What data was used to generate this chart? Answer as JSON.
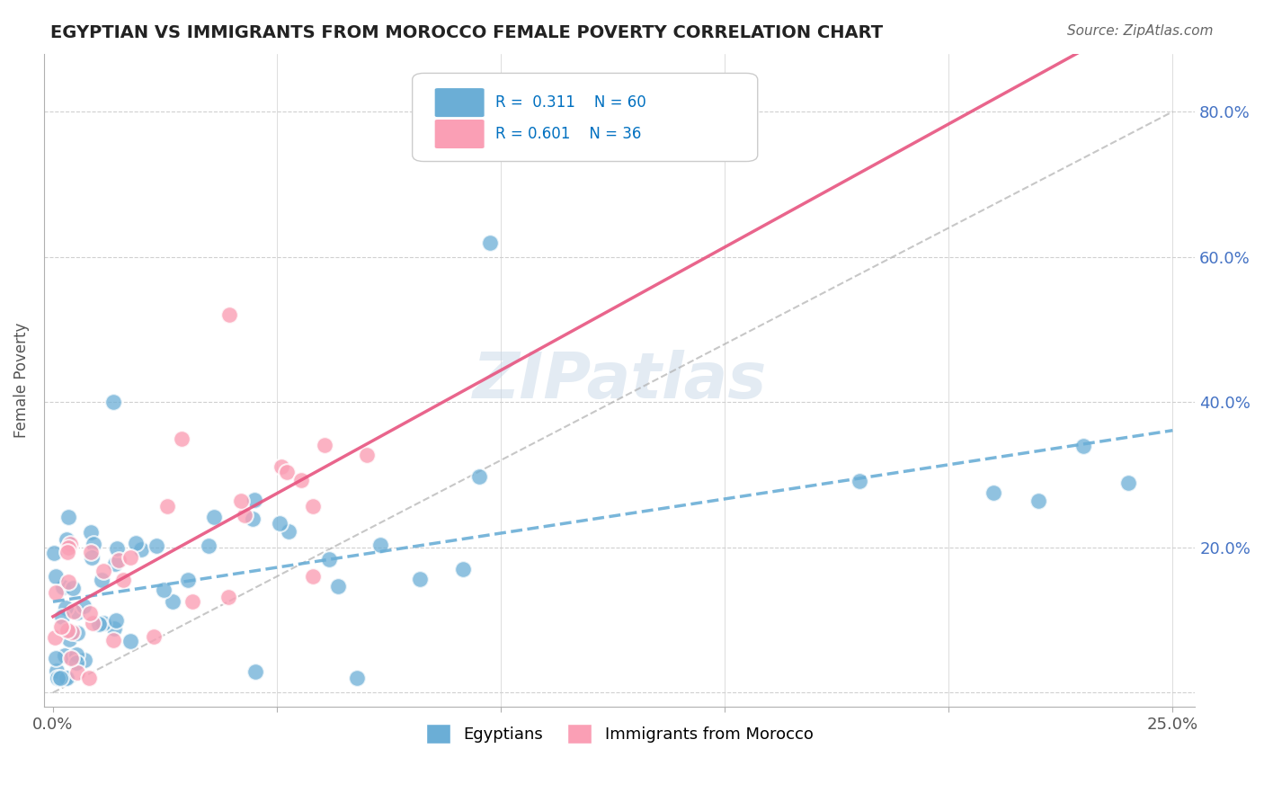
{
  "title": "EGYPTIAN VS IMMIGRANTS FROM MOROCCO FEMALE POVERTY CORRELATION CHART",
  "source": "Source: ZipAtlas.com",
  "ylabel": "Female Poverty",
  "egyptian_color": "#6baed6",
  "morocco_color": "#fa9fb5",
  "egyptian_R": 0.311,
  "egyptian_N": 60,
  "morocco_R": 0.601,
  "morocco_N": 36,
  "legend_label_1": "Egyptians",
  "legend_label_2": "Immigrants from Morocco",
  "watermark": "ZIPatlas",
  "background_color": "#ffffff",
  "grid_color": "#d0d0d0"
}
